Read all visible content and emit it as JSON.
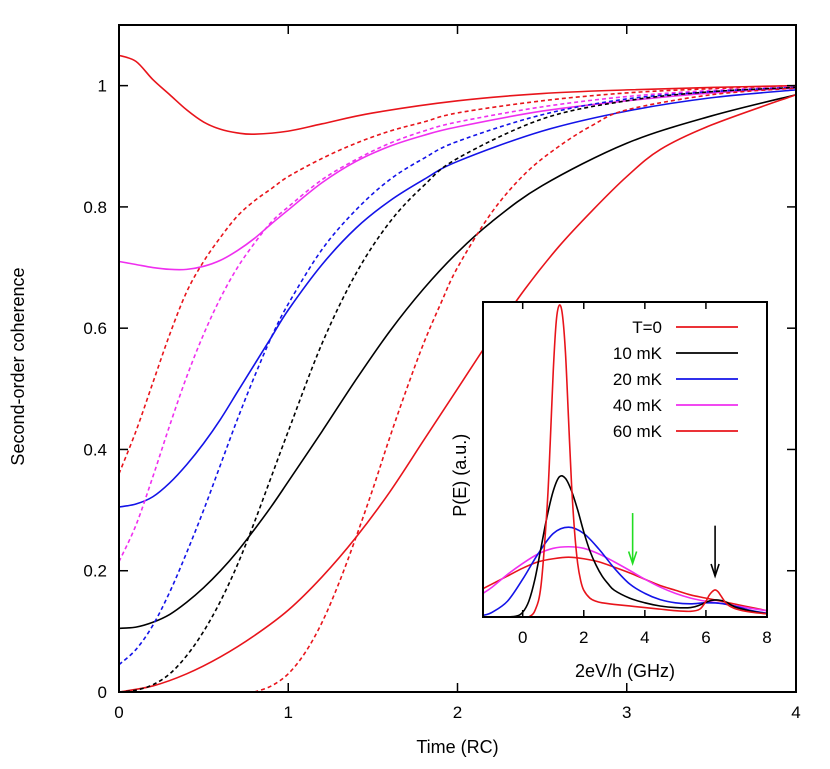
{
  "chart_data": [
    {
      "type": "line",
      "title": "",
      "xlabel": "Time (RC)",
      "ylabel": "Second-order coherence",
      "xlim": [
        0,
        4
      ],
      "ylim": [
        0,
        1.1
      ],
      "xticks": [
        0,
        1,
        2,
        3,
        4
      ],
      "yticks": [
        0,
        0.2,
        0.4,
        0.6,
        0.8,
        1
      ],
      "grid": false,
      "series": [
        {
          "color": "#e8141b",
          "style": "solid",
          "x": [
            0,
            0.1,
            0.2,
            0.3,
            0.4,
            0.5,
            0.6,
            0.7,
            0.8,
            1.0,
            1.2,
            1.5,
            2.0,
            2.5,
            3.0,
            3.5,
            4.0
          ],
          "y": [
            1.05,
            1.04,
            1.01,
            0.985,
            0.96,
            0.94,
            0.928,
            0.922,
            0.92,
            0.925,
            0.937,
            0.955,
            0.975,
            0.987,
            0.993,
            0.997,
            1.0
          ]
        },
        {
          "color": "#ef2fef",
          "style": "solid",
          "x": [
            0,
            0.1,
            0.2,
            0.3,
            0.4,
            0.5,
            0.6,
            0.7,
            0.8,
            0.9,
            1.0,
            1.2,
            1.4,
            1.6,
            1.8,
            2.0,
            2.5,
            3.0,
            3.5,
            4.0
          ],
          "y": [
            0.71,
            0.705,
            0.7,
            0.697,
            0.697,
            0.702,
            0.712,
            0.728,
            0.748,
            0.772,
            0.795,
            0.84,
            0.875,
            0.9,
            0.918,
            0.932,
            0.958,
            0.975,
            0.988,
            0.996
          ]
        },
        {
          "color": "#1313e8",
          "style": "solid",
          "x": [
            0,
            0.1,
            0.2,
            0.3,
            0.4,
            0.5,
            0.6,
            0.7,
            0.8,
            0.9,
            1.0,
            1.2,
            1.4,
            1.6,
            1.8,
            2.0,
            2.5,
            3.0,
            3.5,
            4.0
          ],
          "y": [
            0.305,
            0.31,
            0.322,
            0.345,
            0.375,
            0.41,
            0.45,
            0.495,
            0.54,
            0.585,
            0.63,
            0.705,
            0.765,
            0.81,
            0.845,
            0.875,
            0.925,
            0.958,
            0.98,
            0.993
          ]
        },
        {
          "color": "#000000",
          "style": "solid",
          "x": [
            0,
            0.1,
            0.2,
            0.3,
            0.4,
            0.5,
            0.6,
            0.7,
            0.8,
            0.9,
            1.0,
            1.2,
            1.4,
            1.6,
            1.8,
            2.0,
            2.2,
            2.5,
            3.0,
            3.5,
            4.0
          ],
          "y": [
            0.105,
            0.107,
            0.115,
            0.128,
            0.148,
            0.172,
            0.2,
            0.232,
            0.268,
            0.306,
            0.347,
            0.43,
            0.515,
            0.595,
            0.665,
            0.725,
            0.775,
            0.835,
            0.905,
            0.95,
            0.985
          ]
        },
        {
          "color": "#e8141b",
          "style": "solid",
          "x": [
            0,
            0.2,
            0.4,
            0.6,
            0.8,
            1.0,
            1.2,
            1.4,
            1.6,
            1.8,
            2.0,
            2.2,
            2.4,
            2.6,
            2.8,
            3.0,
            3.2,
            3.5,
            4.0
          ],
          "y": [
            0.0,
            0.01,
            0.03,
            0.058,
            0.093,
            0.135,
            0.19,
            0.255,
            0.33,
            0.415,
            0.5,
            0.585,
            0.665,
            0.735,
            0.795,
            0.85,
            0.895,
            0.935,
            0.985
          ]
        },
        {
          "color": "#e8141b",
          "style": "dashed",
          "x": [
            0,
            0.1,
            0.2,
            0.3,
            0.4,
            0.5,
            0.6,
            0.7,
            0.8,
            0.9,
            1.0,
            1.2,
            1.4,
            1.6,
            1.8,
            2.0,
            2.5,
            3.0,
            3.5,
            4.0
          ],
          "y": [
            0.36,
            0.43,
            0.51,
            0.59,
            0.66,
            0.71,
            0.75,
            0.785,
            0.81,
            0.83,
            0.85,
            0.88,
            0.905,
            0.925,
            0.94,
            0.955,
            0.975,
            0.988,
            0.995,
            1.0
          ]
        },
        {
          "color": "#ef2fef",
          "style": "dashed",
          "x": [
            0,
            0.1,
            0.2,
            0.3,
            0.4,
            0.5,
            0.6,
            0.7,
            0.8,
            0.9,
            1.0,
            1.2,
            1.4,
            1.6,
            1.8,
            2.0,
            2.5,
            3.0,
            3.5,
            4.0
          ],
          "y": [
            0.215,
            0.275,
            0.355,
            0.44,
            0.52,
            0.59,
            0.65,
            0.7,
            0.74,
            0.775,
            0.8,
            0.845,
            0.878,
            0.905,
            0.925,
            0.94,
            0.965,
            0.982,
            0.992,
            0.998
          ]
        },
        {
          "color": "#1313e8",
          "style": "dashed",
          "x": [
            0,
            0.1,
            0.2,
            0.3,
            0.4,
            0.5,
            0.6,
            0.7,
            0.8,
            0.9,
            1.0,
            1.2,
            1.4,
            1.6,
            1.8,
            2.0,
            2.5,
            3.0,
            3.5,
            4.0
          ],
          "y": [
            0.045,
            0.07,
            0.11,
            0.165,
            0.23,
            0.3,
            0.375,
            0.45,
            0.52,
            0.585,
            0.64,
            0.73,
            0.795,
            0.845,
            0.88,
            0.908,
            0.952,
            0.978,
            0.99,
            0.997
          ]
        },
        {
          "color": "#000000",
          "style": "dashed",
          "x": [
            0,
            0.1,
            0.2,
            0.3,
            0.4,
            0.5,
            0.6,
            0.7,
            0.8,
            0.9,
            1.0,
            1.2,
            1.4,
            1.6,
            1.8,
            2.0,
            2.5,
            3.0,
            3.5,
            4.0
          ],
          "y": [
            0.0,
            0.003,
            0.012,
            0.03,
            0.06,
            0.1,
            0.15,
            0.21,
            0.28,
            0.355,
            0.43,
            0.575,
            0.69,
            0.775,
            0.835,
            0.88,
            0.945,
            0.975,
            0.99,
            0.997
          ]
        },
        {
          "color": "#e8141b",
          "style": "dashed",
          "x": [
            0.8,
            0.9,
            1.0,
            1.1,
            1.2,
            1.3,
            1.4,
            1.5,
            1.6,
            1.7,
            1.8,
            1.9,
            2.0,
            2.2,
            2.4,
            2.6,
            2.8,
            3.0,
            3.5,
            4.0
          ],
          "y": [
            0.0,
            0.01,
            0.03,
            0.065,
            0.115,
            0.18,
            0.255,
            0.335,
            0.42,
            0.5,
            0.575,
            0.64,
            0.7,
            0.79,
            0.855,
            0.9,
            0.935,
            0.96,
            0.985,
            0.996
          ]
        }
      ]
    },
    {
      "type": "line",
      "title": "",
      "xlabel": "2eV/h (GHz)",
      "ylabel": "P(E) (a.u.)",
      "xlim": [
        -1.3,
        8.0
      ],
      "ylim": [
        0,
        1.0
      ],
      "xticks": [
        0,
        2,
        4,
        6,
        8
      ],
      "legend_position": "top-right",
      "annotations": [
        {
          "kind": "arrow",
          "color": "#22dd22",
          "x": 3.6,
          "y_from": 0.33,
          "y_to": 0.17
        },
        {
          "kind": "arrow",
          "color": "#000000",
          "x": 6.3,
          "y_from": 0.29,
          "y_to": 0.13
        }
      ],
      "series": [
        {
          "name": "T=0",
          "color": "#e8141b",
          "x": [
            0.2,
            0.4,
            0.6,
            0.8,
            0.9,
            1.0,
            1.1,
            1.2,
            1.3,
            1.4,
            1.5,
            1.6,
            1.7,
            1.8,
            1.9,
            2.0,
            2.2,
            2.4,
            2.6,
            3.0,
            3.5,
            4.0,
            4.5,
            5.0,
            5.5,
            5.8,
            6.0,
            6.1,
            6.2,
            6.3,
            6.4,
            6.5,
            6.7,
            7.0,
            7.5,
            8.0
          ],
          "y": [
            0.0,
            0.02,
            0.1,
            0.35,
            0.55,
            0.78,
            0.94,
            0.99,
            0.96,
            0.84,
            0.63,
            0.42,
            0.27,
            0.17,
            0.115,
            0.085,
            0.06,
            0.05,
            0.045,
            0.04,
            0.035,
            0.03,
            0.025,
            0.02,
            0.018,
            0.025,
            0.05,
            0.068,
            0.08,
            0.086,
            0.08,
            0.066,
            0.04,
            0.025,
            0.015,
            0.01
          ]
        },
        {
          "name": "10 mK",
          "color": "#000000",
          "x": [
            -0.5,
            -0.2,
            0.0,
            0.2,
            0.4,
            0.6,
            0.8,
            1.0,
            1.2,
            1.4,
            1.6,
            1.8,
            2.0,
            2.2,
            2.4,
            2.6,
            2.8,
            3.0,
            3.5,
            4.0,
            4.5,
            5.0,
            5.5,
            5.8,
            6.0,
            6.2,
            6.4,
            6.6,
            6.8,
            7.0,
            7.5,
            8.0
          ],
          "y": [
            0.0,
            0.003,
            0.015,
            0.05,
            0.12,
            0.22,
            0.32,
            0.4,
            0.445,
            0.44,
            0.4,
            0.34,
            0.27,
            0.21,
            0.165,
            0.13,
            0.105,
            0.085,
            0.06,
            0.045,
            0.035,
            0.03,
            0.03,
            0.038,
            0.047,
            0.053,
            0.054,
            0.05,
            0.04,
            0.03,
            0.018,
            0.01
          ]
        },
        {
          "name": "20 mK",
          "color": "#1313e8",
          "x": [
            -1.3,
            -1.0,
            -0.5,
            0.0,
            0.5,
            1.0,
            1.5,
            2.0,
            2.5,
            3.0,
            3.5,
            4.0,
            4.5,
            5.0,
            5.5,
            6.0,
            6.5,
            7.0,
            7.5,
            8.0
          ],
          "y": [
            0.005,
            0.015,
            0.05,
            0.12,
            0.2,
            0.265,
            0.285,
            0.265,
            0.215,
            0.155,
            0.105,
            0.075,
            0.055,
            0.045,
            0.042,
            0.045,
            0.043,
            0.033,
            0.02,
            0.012
          ]
        },
        {
          "name": "40 mK",
          "color": "#ef2fef",
          "x": [
            -1.3,
            -1.0,
            -0.5,
            0.0,
            0.5,
            1.0,
            1.5,
            2.0,
            2.5,
            3.0,
            3.5,
            4.0,
            4.5,
            5.0,
            5.5,
            6.0,
            6.5,
            7.0,
            7.5,
            8.0
          ],
          "y": [
            0.075,
            0.095,
            0.135,
            0.17,
            0.2,
            0.218,
            0.223,
            0.218,
            0.2,
            0.175,
            0.148,
            0.12,
            0.095,
            0.075,
            0.06,
            0.05,
            0.043,
            0.035,
            0.027,
            0.02
          ]
        },
        {
          "name": "60 mK",
          "color": "#e8141b",
          "x": [
            -1.3,
            -1.0,
            -0.5,
            0.0,
            0.5,
            1.0,
            1.5,
            2.0,
            2.5,
            3.0,
            3.5,
            4.0,
            4.5,
            5.0,
            5.5,
            6.0,
            6.5,
            7.0,
            7.5,
            8.0
          ],
          "y": [
            0.09,
            0.105,
            0.13,
            0.155,
            0.175,
            0.185,
            0.19,
            0.185,
            0.175,
            0.158,
            0.14,
            0.12,
            0.1,
            0.085,
            0.07,
            0.06,
            0.05,
            0.04,
            0.03,
            0.02
          ]
        }
      ]
    }
  ]
}
